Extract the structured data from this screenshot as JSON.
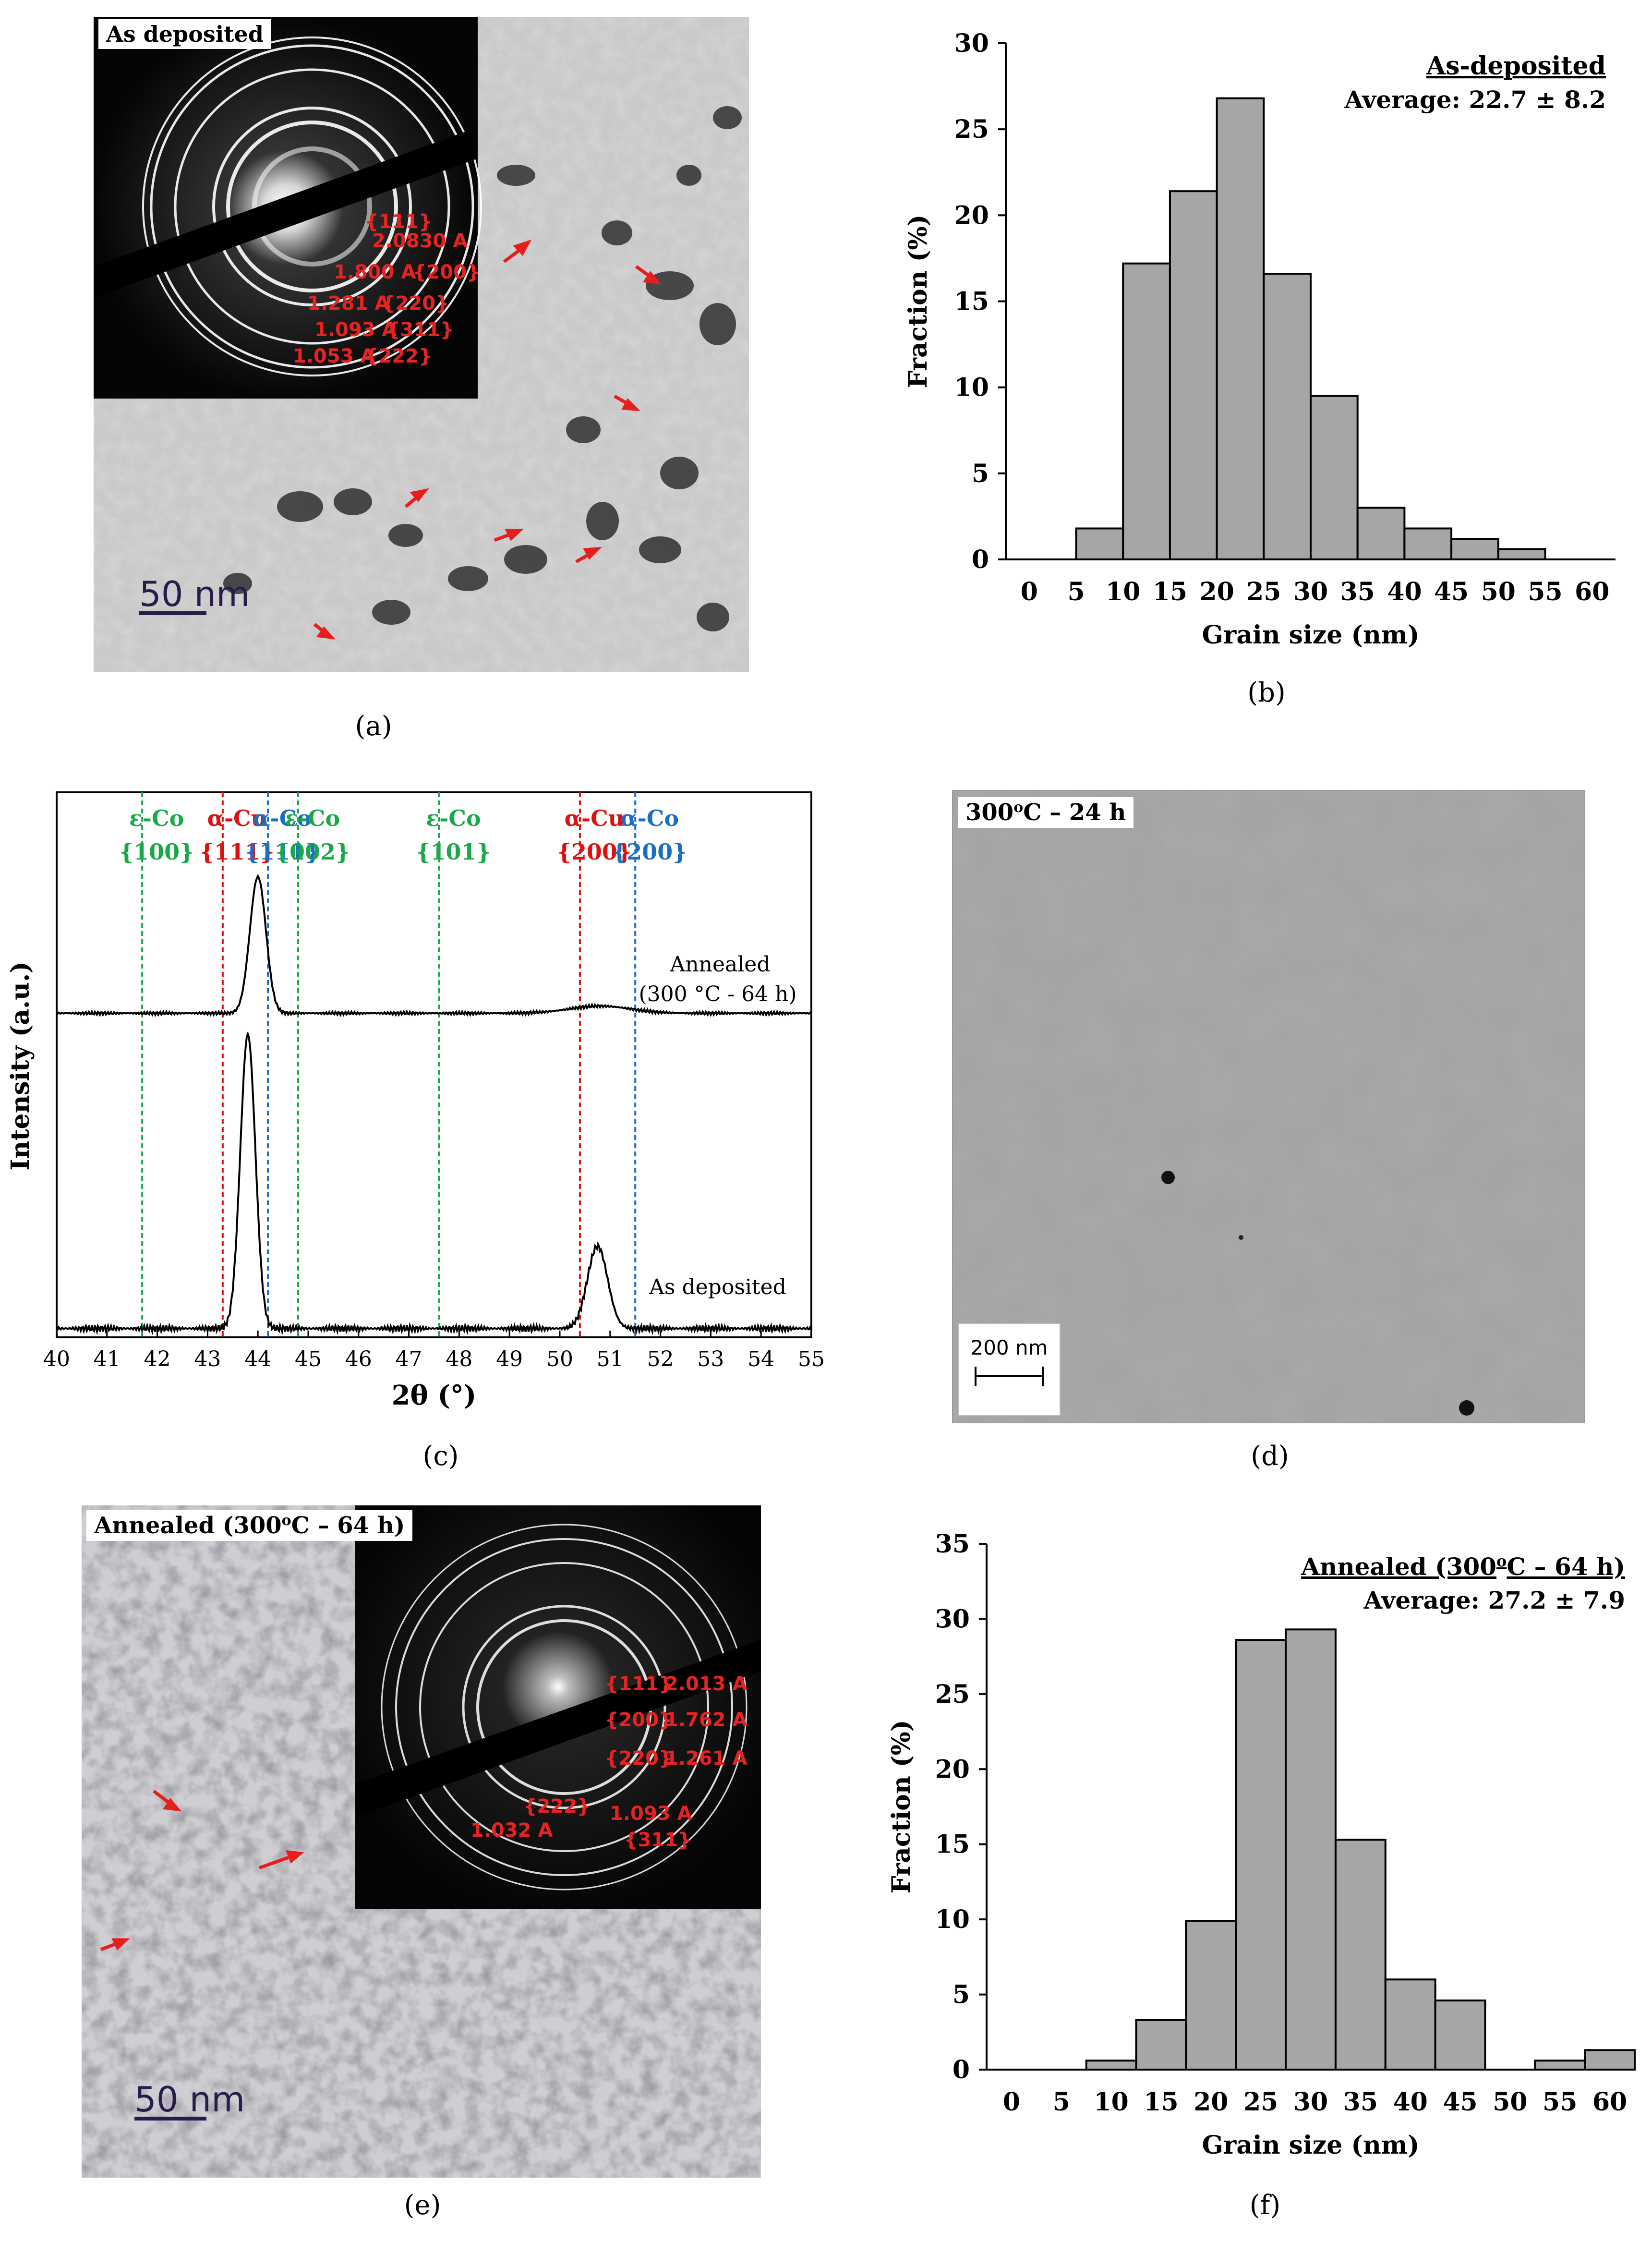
{
  "panels": {
    "a": {
      "caption": "(a)",
      "label": "As deposited",
      "scale_bar": "50 nm",
      "sad_labels": [
        "{111}",
        "2.0830 A",
        "1.800 A",
        "{200}",
        "1.281 A",
        "{220}",
        "1.093 A",
        "{311}",
        "1.053 A",
        "{222}"
      ]
    },
    "b": {
      "caption": "(b)"
    },
    "c": {
      "caption": "(c)"
    },
    "d": {
      "caption": "(d)",
      "label": "300°C – 24 h",
      "label_main": "300",
      "label_sup": "o",
      "label_rest": "C – 24 h",
      "scale_bar": "200 nm"
    },
    "e": {
      "caption": "(e)",
      "label_main": "Annealed (300",
      "label_sup": "o",
      "label_rest": "C – 64 h)",
      "scale_bar": "50 nm",
      "sad_labels": [
        "{111}",
        "2.013 A",
        "{200}",
        "1.762 A",
        "{220}",
        "1.261 A",
        "{222}",
        "1.093 A",
        "1.032 A",
        "{311}"
      ]
    },
    "f": {
      "caption": "(f)"
    }
  },
  "chart_data": [
    {
      "id": "b",
      "type": "bar",
      "title": "As-deposited",
      "subtitle": "Average: 22.7 ± 8.2",
      "xlabel": "Grain size (nm)",
      "ylabel": "Fraction (%)",
      "ylim": [
        0,
        30
      ],
      "yticks": [
        0,
        5,
        10,
        15,
        20,
        25,
        30
      ],
      "xticks": [
        0,
        5,
        10,
        15,
        20,
        25,
        30,
        35,
        40,
        45,
        50,
        55,
        60
      ],
      "bin_width": 5,
      "bins": [
        [
          7.5,
          1.8
        ],
        [
          12.5,
          17.2
        ],
        [
          17.5,
          21.4
        ],
        [
          22.5,
          26.8
        ],
        [
          27.5,
          16.6
        ],
        [
          32.5,
          9.5
        ],
        [
          37.5,
          3.0
        ],
        [
          42.5,
          1.8
        ],
        [
          47.5,
          1.2
        ],
        [
          52.5,
          0.6
        ]
      ],
      "bar_color": "#a6a6a6"
    },
    {
      "id": "c",
      "type": "line",
      "xlabel": "2θ (°)",
      "ylabel": "Intensity (a.u.)",
      "xlim": [
        40,
        55
      ],
      "xticks": [
        40,
        41,
        42,
        43,
        44,
        45,
        46,
        47,
        48,
        49,
        50,
        51,
        52,
        53,
        54,
        55
      ],
      "reference_lines": [
        {
          "phase": "ε-Co",
          "hkl": "{100}",
          "x": 41.7,
          "color": "#1aa84a"
        },
        {
          "phase": "α-Cu",
          "hkl": "{111}",
          "x": 43.3,
          "color": "#e01010"
        },
        {
          "phase": "α-Co",
          "hkl": "{111}",
          "x": 44.2,
          "color": "#1a6fc4"
        },
        {
          "phase": "ε-Co",
          "hkl": "{002}",
          "x": 44.8,
          "color": "#1aa84a"
        },
        {
          "phase": "ε-Co",
          "hkl": "{101}",
          "x": 47.6,
          "color": "#1aa84a"
        },
        {
          "phase": "α-Cu",
          "hkl": "{200}",
          "x": 50.4,
          "color": "#e01010"
        },
        {
          "phase": "α-Co",
          "hkl": "{200}",
          "x": 51.5,
          "color": "#1a6fc4"
        }
      ],
      "series": [
        {
          "name": "Annealed (300 °C - 64 h)",
          "name_line1": "Annealed",
          "name_line2": "(300 °C - 64 h)",
          "baseline": 0.05,
          "peaks": [
            [
              44.0,
              0.95,
              0.16
            ],
            [
              50.8,
              0.05,
              0.6
            ]
          ]
        },
        {
          "name": "As deposited",
          "baseline": 0.03,
          "peaks": [
            [
              43.8,
              1.0,
              0.15
            ],
            [
              50.75,
              0.28,
              0.2
            ]
          ]
        }
      ]
    },
    {
      "id": "f",
      "type": "bar",
      "title": "Annealed (300°C – 64 h)",
      "title_main": "Annealed (300",
      "title_sup": "o",
      "title_rest": "C – 64 h)",
      "subtitle": "Average: 27.2 ± 7.9",
      "xlabel": "Grain size (nm)",
      "ylabel": "Fraction (%)",
      "ylim": [
        0,
        35
      ],
      "yticks": [
        0,
        5,
        10,
        15,
        20,
        25,
        30,
        35
      ],
      "xticks": [
        0,
        5,
        10,
        15,
        20,
        25,
        30,
        35,
        40,
        45,
        50,
        55,
        60
      ],
      "bin_width": 5,
      "bins": [
        [
          10,
          0.6
        ],
        [
          15,
          3.3
        ],
        [
          20,
          9.9
        ],
        [
          25,
          28.6
        ],
        [
          30,
          29.3
        ],
        [
          35,
          15.3
        ],
        [
          40,
          6.0
        ],
        [
          45,
          4.6
        ],
        [
          55,
          0.6
        ],
        [
          60,
          1.3
        ]
      ],
      "bar_color": "#a6a6a6"
    }
  ]
}
